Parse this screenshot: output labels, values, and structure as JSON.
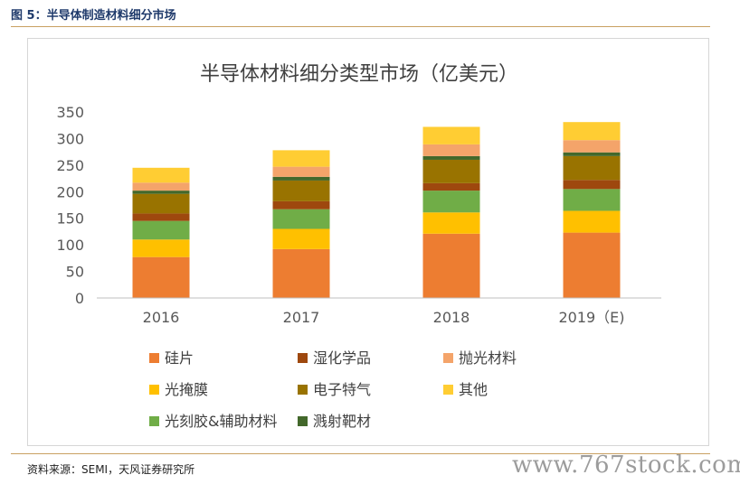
{
  "figure_title": "图 5：半导体制造材料细分市场",
  "source": "资料来源：SEMI，天风证券研究所",
  "watermark": "www.767stock.com",
  "chart_data": {
    "type": "bar",
    "stacked": true,
    "title": "半导体材料细分类型市场（亿美元）",
    "categories": [
      "2016",
      "2017",
      "2018",
      "2019（E)"
    ],
    "ylim": [
      0,
      350
    ],
    "yticks": [
      0,
      50,
      100,
      150,
      200,
      250,
      300,
      350
    ],
    "grid": false,
    "legend_position": "bottom",
    "series": [
      {
        "name": "硅片",
        "color": "#ed7d31",
        "values": [
          77,
          92,
          121,
          123
        ]
      },
      {
        "name": "光掩膜",
        "color": "#ffc000",
        "values": [
          33,
          38,
          40,
          41
        ]
      },
      {
        "name": "光刻胶&辅助材料",
        "color": "#70ad47",
        "values": [
          35,
          37,
          41,
          41
        ]
      },
      {
        "name": "湿化学品",
        "color": "#9e480e",
        "values": [
          14,
          15,
          14,
          17
        ]
      },
      {
        "name": "电子特气",
        "color": "#997300",
        "values": [
          37,
          39,
          44,
          45
        ]
      },
      {
        "name": "溅射靶材",
        "color": "#43682b",
        "values": [
          6,
          7,
          7,
          7
        ]
      },
      {
        "name": "抛光材料",
        "color": "#f4a46a",
        "values": [
          15,
          19,
          22,
          23
        ]
      },
      {
        "name": "其他",
        "color": "#ffcd33",
        "values": [
          28,
          31,
          33,
          34
        ]
      }
    ]
  }
}
